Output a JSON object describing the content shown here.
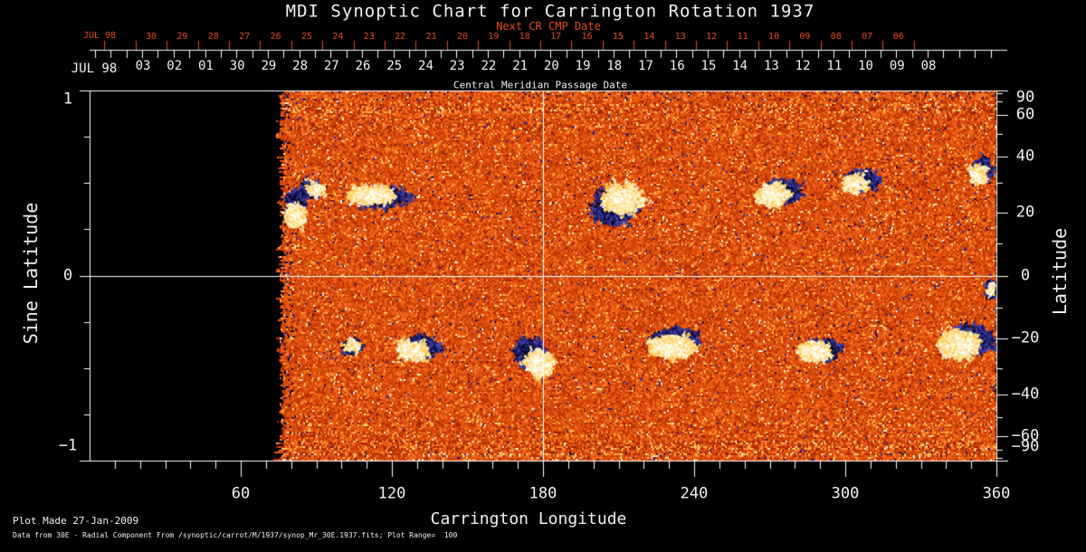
{
  "title": "MDI Synoptic Chart for Carrington Rotation 1937",
  "colors": {
    "background": "#000000",
    "foreground": "#f2f2f2",
    "secondary_axis_red": "#e8491b"
  },
  "top_axis_secondary": {
    "month_label": "JUL 98",
    "title": "Next CR CMP Date",
    "tick_labels": [
      "30",
      "29",
      "28",
      "27",
      "26",
      "25",
      "24",
      "23",
      "22",
      "21",
      "20",
      "19",
      "18",
      "17",
      "16",
      "15",
      "14",
      "13",
      "12",
      "11",
      "10",
      "09",
      "08",
      "07",
      "06"
    ]
  },
  "top_axis_primary": {
    "month_label": "JUL 98",
    "title": "Central Meridian Passage Date",
    "tick_labels": [
      "03",
      "02",
      "01",
      "30",
      "29",
      "28",
      "27",
      "26",
      "25",
      "24",
      "23",
      "22",
      "21",
      "20",
      "19",
      "18",
      "17",
      "16",
      "15",
      "14",
      "13",
      "12",
      "11",
      "10",
      "09",
      "08"
    ]
  },
  "left_axis": {
    "title": "Sine Latitude",
    "tick_labels": [
      "1",
      "0",
      "−1"
    ]
  },
  "right_axis": {
    "title": "Latitude",
    "tick_labels": [
      "90",
      "60",
      "40",
      "20",
      "0",
      "−20",
      "−40",
      "−60",
      "−90"
    ]
  },
  "bottom_axis": {
    "title": "Carrington Longitude",
    "tick_labels": [
      "60",
      "120",
      "180",
      "240",
      "300",
      "360"
    ]
  },
  "footer": {
    "line1": "Plot Made 27-Jan-2009",
    "line2": "Data from 30E - Radial Component From /synoptic/carrot/M/1937/synop_Mr_30E.1937.fits; Plot Range=  100"
  },
  "chart_data": {
    "type": "heatmap",
    "title": "MDI Synoptic Chart for Carrington Rotation 1937",
    "xlabel": "Carrington Longitude",
    "ylabel": "Sine Latitude",
    "y2label": "Latitude",
    "xlim": [
      0,
      360
    ],
    "ylim": [
      -1,
      1
    ],
    "x_major_ticks": [
      60,
      120,
      180,
      240,
      300,
      360
    ],
    "x_minor_tick_step_deg": 10,
    "y_major_ticks_sine": [
      1,
      0,
      -1
    ],
    "y_minor_tick_step_sine": 0.25,
    "y2_major_ticks_latitude": [
      90,
      60,
      40,
      20,
      0,
      -20,
      -40,
      -60,
      -90
    ],
    "y2_minor_tick_step_deg": 10,
    "gridlines": {
      "longitude_deg": [
        180
      ],
      "sine_latitude": [
        0
      ]
    },
    "data_coverage_longitude_deg": [
      76,
      360
    ],
    "plot_range_gauss": 100,
    "colormap": "solar magnetogram: orange/red quiet-sun noise; white-yellow = positive polarity; blue-black = negative polarity; black = no data",
    "active_regions": [
      {
        "lon": 81.5,
        "lat": 20,
        "hw_deg": 3.6,
        "hh_sin": 0.059,
        "pos": 0.95,
        "neg": 0.3,
        "po": [
          0,
          0.3
        ],
        "no": [
          0.1,
          -1.0
        ]
      },
      {
        "lon": 88,
        "lat": 28,
        "hw_deg": 4.3,
        "hh_sin": 0.029,
        "pos": 0.12,
        "neg": 0.45,
        "po": [
          0.5,
          0
        ],
        "no": [
          0,
          0
        ]
      },
      {
        "lon": 112,
        "lat": 26,
        "hw_deg": 10.8,
        "hh_sin": 0.049,
        "pos": 0.6,
        "neg": 0.4,
        "po": [
          0,
          0
        ],
        "no": [
          0.4,
          0.3
        ]
      },
      {
        "lon": 209,
        "lat": 23,
        "hw_deg": 8.6,
        "hh_sin": 0.088,
        "pos": 0.75,
        "neg": 1.0,
        "po": [
          0.25,
          -0.35
        ],
        "no": [
          -0.15,
          0.2
        ]
      },
      {
        "lon": 273,
        "lat": 27,
        "hw_deg": 7.2,
        "hh_sin": 0.064,
        "pos": 0.5,
        "neg": 0.75,
        "po": [
          -0.3,
          0.2
        ],
        "no": [
          0.25,
          -0.1
        ]
      },
      {
        "lon": 306,
        "lat": 31,
        "hw_deg": 6.1,
        "hh_sin": 0.054,
        "pos": 0.22,
        "neg": 0.65,
        "po": [
          -0.4,
          0.3
        ],
        "no": [
          0.1,
          0
        ]
      },
      {
        "lon": 354,
        "lat": 35,
        "hw_deg": 3.6,
        "hh_sin": 0.054,
        "pos": 0.18,
        "neg": 0.55,
        "po": [
          -0.5,
          0.4
        ],
        "no": [
          0,
          0
        ]
      },
      {
        "lon": 104,
        "lat": -22,
        "hw_deg": 2.9,
        "hh_sin": 0.029,
        "pos": 0.1,
        "neg": 0.35,
        "po": [
          0,
          0
        ],
        "no": [
          0,
          0
        ]
      },
      {
        "lon": 130,
        "lat": -23,
        "hw_deg": 6.8,
        "hh_sin": 0.054,
        "pos": 0.28,
        "neg": 0.6,
        "po": [
          -0.3,
          0.3
        ],
        "no": [
          0.2,
          -0.1
        ]
      },
      {
        "lon": 176,
        "lat": -26,
        "hw_deg": 6.1,
        "hh_sin": 0.073,
        "pos": 0.55,
        "neg": 0.6,
        "po": [
          0.3,
          0.4
        ],
        "no": [
          -0.2,
          -0.3
        ]
      },
      {
        "lon": 231,
        "lat": -22,
        "hw_deg": 9.7,
        "hh_sin": 0.064,
        "pos": 0.9,
        "neg": 0.45,
        "po": [
          0,
          0.1
        ],
        "no": [
          0.15,
          -0.5
        ]
      },
      {
        "lon": 288,
        "lat": -24,
        "hw_deg": 6.8,
        "hh_sin": 0.049,
        "pos": 0.6,
        "neg": 0.35,
        "po": [
          -0.1,
          0
        ],
        "no": [
          0.5,
          -0.2
        ]
      },
      {
        "lon": 347,
        "lat": -21,
        "hw_deg": 8.3,
        "hh_sin": 0.078,
        "pos": 0.95,
        "neg": 0.9,
        "po": [
          -0.25,
          0.15
        ],
        "no": [
          0.35,
          -0.2
        ]
      },
      {
        "lon": 357.5,
        "lat": -4,
        "hw_deg": 1.4,
        "hh_sin": 0.044,
        "pos": 0.04,
        "neg": 0.3,
        "po": [
          0,
          0
        ],
        "no": [
          0,
          0
        ]
      }
    ]
  }
}
